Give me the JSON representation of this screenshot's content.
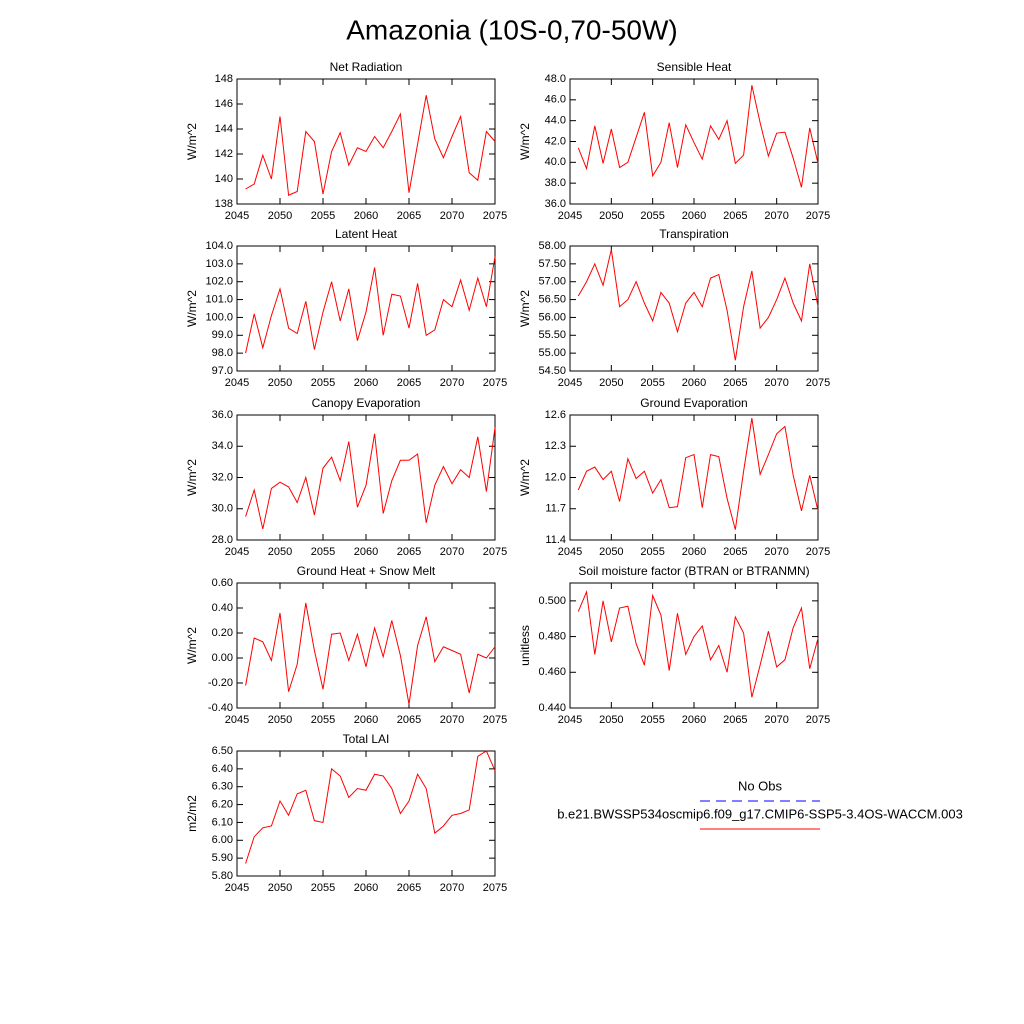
{
  "title": "Amazonia (10S-0,70-50W)",
  "legend": [
    {
      "label": "No Obs",
      "color": "#0000ff",
      "dash": true
    },
    {
      "label": "b.e21.BWSSP534oscmip6.f09_g17.CMIP6-SSP5-3.4OS-WACCM.003",
      "color": "#ff0000",
      "dash": false
    }
  ],
  "chart_data": [
    {
      "type": "line",
      "title": "Net Radiation",
      "ylabel": "W/m^2",
      "color": "#ff0000",
      "x": [
        2046,
        2047,
        2048,
        2049,
        2050,
        2051,
        2052,
        2053,
        2054,
        2055,
        2056,
        2057,
        2058,
        2059,
        2060,
        2061,
        2062,
        2063,
        2064,
        2065,
        2066,
        2067,
        2068,
        2069,
        2070,
        2071,
        2072,
        2073,
        2074,
        2075
      ],
      "values": [
        139.2,
        139.6,
        141.9,
        140.0,
        145.0,
        138.7,
        139.0,
        143.8,
        143.0,
        138.8,
        142.2,
        143.7,
        141.1,
        142.5,
        142.2,
        143.4,
        142.5,
        143.8,
        145.2,
        138.9,
        142.8,
        146.7,
        143.2,
        141.7,
        143.4,
        145.0,
        140.5,
        139.9,
        143.8,
        143.0
      ],
      "xlim": [
        2045,
        2075
      ],
      "xticks": [
        2045,
        2050,
        2055,
        2060,
        2065,
        2070,
        2075
      ],
      "ylim": [
        138,
        148
      ],
      "yticks": [
        138,
        140,
        142,
        144,
        146,
        148
      ]
    },
    {
      "type": "line",
      "title": "Sensible Heat",
      "ylabel": "W/m^2",
      "color": "#ff0000",
      "x": [
        2046,
        2047,
        2048,
        2049,
        2050,
        2051,
        2052,
        2053,
        2054,
        2055,
        2056,
        2057,
        2058,
        2059,
        2060,
        2061,
        2062,
        2063,
        2064,
        2065,
        2066,
        2067,
        2068,
        2069,
        2070,
        2071,
        2072,
        2073,
        2074,
        2075
      ],
      "values": [
        41.4,
        39.4,
        43.5,
        39.9,
        43.2,
        39.5,
        40.0,
        42.4,
        44.8,
        38.7,
        40.0,
        43.8,
        39.5,
        43.6,
        41.9,
        40.3,
        43.5,
        42.2,
        44.0,
        39.9,
        40.7,
        47.4,
        43.8,
        40.6,
        42.8,
        42.9,
        40.4,
        37.6,
        43.3,
        39.9
      ],
      "xlim": [
        2045,
        2075
      ],
      "xticks": [
        2045,
        2050,
        2055,
        2060,
        2065,
        2070,
        2075
      ],
      "ylim": [
        36,
        48
      ],
      "yticks": [
        {
          "value": 36,
          "label": "36.0"
        },
        {
          "value": 38,
          "label": "38.0"
        },
        {
          "value": 40,
          "label": "40.0"
        },
        {
          "value": 42,
          "label": "42.0"
        },
        {
          "value": 44,
          "label": "44.0"
        },
        {
          "value": 46,
          "label": "46.0"
        },
        {
          "value": 48,
          "label": "48.0"
        }
      ]
    },
    {
      "type": "line",
      "title": "Latent Heat",
      "ylabel": "W/m^2",
      "color": "#ff0000",
      "x": [
        2046,
        2047,
        2048,
        2049,
        2050,
        2051,
        2052,
        2053,
        2054,
        2055,
        2056,
        2057,
        2058,
        2059,
        2060,
        2061,
        2062,
        2063,
        2064,
        2065,
        2066,
        2067,
        2068,
        2069,
        2070,
        2071,
        2072,
        2073,
        2074,
        2075
      ],
      "values": [
        98.0,
        100.2,
        98.3,
        100.1,
        101.6,
        99.4,
        99.1,
        100.9,
        98.2,
        100.3,
        102.0,
        99.8,
        101.6,
        98.7,
        100.3,
        102.8,
        99.0,
        101.3,
        101.2,
        99.4,
        101.9,
        99.0,
        99.3,
        101.0,
        100.6,
        102.1,
        100.4,
        102.2,
        100.6,
        103.4
      ],
      "xlim": [
        2045,
        2075
      ],
      "xticks": [
        2045,
        2050,
        2055,
        2060,
        2065,
        2070,
        2075
      ],
      "ylim": [
        97,
        104
      ],
      "yticks": [
        {
          "value": 97,
          "label": "97.0"
        },
        {
          "value": 98,
          "label": "98.0"
        },
        {
          "value": 99,
          "label": "99.0"
        },
        {
          "value": 100,
          "label": "100.0"
        },
        {
          "value": 101,
          "label": "101.0"
        },
        {
          "value": 102,
          "label": "102.0"
        },
        {
          "value": 103,
          "label": "103.0"
        },
        {
          "value": 104,
          "label": "104.0"
        }
      ]
    },
    {
      "type": "line",
      "title": "Transpiration",
      "ylabel": "W/m^2",
      "color": "#ff0000",
      "x": [
        2046,
        2047,
        2048,
        2049,
        2050,
        2051,
        2052,
        2053,
        2054,
        2055,
        2056,
        2057,
        2058,
        2059,
        2060,
        2061,
        2062,
        2063,
        2064,
        2065,
        2066,
        2067,
        2068,
        2069,
        2070,
        2071,
        2072,
        2073,
        2074,
        2075
      ],
      "values": [
        56.6,
        57.0,
        57.5,
        56.9,
        57.9,
        56.3,
        56.5,
        57.0,
        56.4,
        55.9,
        56.7,
        56.4,
        55.6,
        56.4,
        56.7,
        56.3,
        57.1,
        57.2,
        56.2,
        54.8,
        56.3,
        57.3,
        55.7,
        56.0,
        56.5,
        57.1,
        56.4,
        55.9,
        57.5,
        56.3
      ],
      "xlim": [
        2045,
        2075
      ],
      "xticks": [
        2045,
        2050,
        2055,
        2060,
        2065,
        2070,
        2075
      ],
      "ylim": [
        54.5,
        58
      ],
      "yticks": [
        {
          "value": 54.5,
          "label": "54.50"
        },
        {
          "value": 55,
          "label": "55.00"
        },
        {
          "value": 55.5,
          "label": "55.50"
        },
        {
          "value": 56,
          "label": "56.00"
        },
        {
          "value": 56.5,
          "label": "56.50"
        },
        {
          "value": 57,
          "label": "57.00"
        },
        {
          "value": 57.5,
          "label": "57.50"
        },
        {
          "value": 58,
          "label": "58.00"
        }
      ]
    },
    {
      "type": "line",
      "title": "Canopy Evaporation",
      "ylabel": "W/m^2",
      "color": "#ff0000",
      "x": [
        2046,
        2047,
        2048,
        2049,
        2050,
        2051,
        2052,
        2053,
        2054,
        2055,
        2056,
        2057,
        2058,
        2059,
        2060,
        2061,
        2062,
        2063,
        2064,
        2065,
        2066,
        2067,
        2068,
        2069,
        2070,
        2071,
        2072,
        2073,
        2074,
        2075
      ],
      "values": [
        29.5,
        31.2,
        28.7,
        31.3,
        31.7,
        31.4,
        30.4,
        32.0,
        29.6,
        32.6,
        33.3,
        31.8,
        34.3,
        30.1,
        31.5,
        34.8,
        29.7,
        31.8,
        33.1,
        33.1,
        33.5,
        29.1,
        31.5,
        32.7,
        31.6,
        32.5,
        32.0,
        34.6,
        31.1,
        35.2
      ],
      "xlim": [
        2045,
        2075
      ],
      "xticks": [
        2045,
        2050,
        2055,
        2060,
        2065,
        2070,
        2075
      ],
      "ylim": [
        28,
        36
      ],
      "yticks": [
        {
          "value": 28,
          "label": "28.0"
        },
        {
          "value": 30,
          "label": "30.0"
        },
        {
          "value": 32,
          "label": "32.0"
        },
        {
          "value": 34,
          "label": "34.0"
        },
        {
          "value": 36,
          "label": "36.0"
        }
      ]
    },
    {
      "type": "line",
      "title": "Ground Evaporation",
      "ylabel": "W/m^2",
      "color": "#ff0000",
      "x": [
        2046,
        2047,
        2048,
        2049,
        2050,
        2051,
        2052,
        2053,
        2054,
        2055,
        2056,
        2057,
        2058,
        2059,
        2060,
        2061,
        2062,
        2063,
        2064,
        2065,
        2066,
        2067,
        2068,
        2069,
        2070,
        2071,
        2072,
        2073,
        2074,
        2075
      ],
      "values": [
        11.88,
        12.06,
        12.1,
        11.98,
        12.06,
        11.77,
        12.18,
        11.99,
        12.06,
        11.85,
        11.98,
        11.71,
        11.72,
        12.19,
        12.22,
        11.71,
        12.22,
        12.2,
        11.8,
        11.5,
        12.06,
        12.57,
        12.03,
        12.22,
        12.42,
        12.49,
        12.02,
        11.68,
        12.02,
        11.68
      ],
      "xlim": [
        2045,
        2075
      ],
      "xticks": [
        2045,
        2050,
        2055,
        2060,
        2065,
        2070,
        2075
      ],
      "ylim": [
        11.4,
        12.6
      ],
      "yticks": [
        11.4,
        11.7,
        {
          "value": 12,
          "label": "12.0"
        },
        12.3,
        12.6
      ]
    },
    {
      "type": "line",
      "title": "Ground Heat + Snow Melt",
      "ylabel": "W/m^2",
      "color": "#ff0000",
      "x": [
        2046,
        2047,
        2048,
        2049,
        2050,
        2051,
        2052,
        2053,
        2054,
        2055,
        2056,
        2057,
        2058,
        2059,
        2060,
        2061,
        2062,
        2063,
        2064,
        2065,
        2066,
        2067,
        2068,
        2069,
        2070,
        2071,
        2072,
        2073,
        2074,
        2075
      ],
      "values": [
        -0.22,
        0.16,
        0.13,
        -0.02,
        0.36,
        -0.27,
        -0.05,
        0.44,
        0.06,
        -0.25,
        0.19,
        0.2,
        -0.02,
        0.19,
        -0.07,
        0.24,
        0.01,
        0.3,
        0.02,
        -0.37,
        0.1,
        0.33,
        -0.03,
        0.09,
        0.06,
        0.03,
        -0.28,
        0.03,
        0.0,
        0.09
      ],
      "xlim": [
        2045,
        2075
      ],
      "xticks": [
        2045,
        2050,
        2055,
        2060,
        2065,
        2070,
        2075
      ],
      "ylim": [
        -0.4,
        0.6
      ],
      "yticks": [
        {
          "value": -0.4,
          "label": "-0.40"
        },
        {
          "value": -0.2,
          "label": "-0.20"
        },
        {
          "value": 0,
          "label": "0.00"
        },
        {
          "value": 0.2,
          "label": "0.20"
        },
        {
          "value": 0.4,
          "label": "0.40"
        },
        {
          "value": 0.6,
          "label": "0.60"
        }
      ]
    },
    {
      "type": "line",
      "title": "Soil moisture factor (BTRAN or BTRANMN)",
      "ylabel": "unitless",
      "color": "#ff0000",
      "x": [
        2046,
        2047,
        2048,
        2049,
        2050,
        2051,
        2052,
        2053,
        2054,
        2055,
        2056,
        2057,
        2058,
        2059,
        2060,
        2061,
        2062,
        2063,
        2064,
        2065,
        2066,
        2067,
        2068,
        2069,
        2070,
        2071,
        2072,
        2073,
        2074,
        2075
      ],
      "values": [
        0.494,
        0.505,
        0.47,
        0.5,
        0.477,
        0.496,
        0.497,
        0.476,
        0.464,
        0.503,
        0.492,
        0.461,
        0.493,
        0.47,
        0.48,
        0.486,
        0.467,
        0.475,
        0.46,
        0.491,
        0.482,
        0.446,
        0.464,
        0.483,
        0.463,
        0.467,
        0.485,
        0.496,
        0.462,
        0.479
      ],
      "xlim": [
        2045,
        2075
      ],
      "xticks": [
        2045,
        2050,
        2055,
        2060,
        2065,
        2070,
        2075
      ],
      "ylim": [
        0.44,
        0.51
      ],
      "yticks": [
        {
          "value": 0.44,
          "label": "0.440"
        },
        {
          "value": 0.46,
          "label": "0.460"
        },
        {
          "value": 0.48,
          "label": "0.480"
        },
        {
          "value": 0.5,
          "label": "0.500"
        }
      ]
    },
    {
      "type": "line",
      "title": "Total LAI",
      "ylabel": "m2/m2",
      "color": "#ff0000",
      "x": [
        2046,
        2047,
        2048,
        2049,
        2050,
        2051,
        2052,
        2053,
        2054,
        2055,
        2056,
        2057,
        2058,
        2059,
        2060,
        2061,
        2062,
        2063,
        2064,
        2065,
        2066,
        2067,
        2068,
        2069,
        2070,
        2071,
        2072,
        2073,
        2074,
        2075
      ],
      "values": [
        5.87,
        6.02,
        6.07,
        6.08,
        6.22,
        6.14,
        6.26,
        6.28,
        6.11,
        6.1,
        6.4,
        6.36,
        6.24,
        6.29,
        6.28,
        6.37,
        6.36,
        6.29,
        6.15,
        6.22,
        6.37,
        6.29,
        6.04,
        6.08,
        6.14,
        6.15,
        6.17,
        6.47,
        6.5,
        6.39
      ],
      "xlim": [
        2045,
        2075
      ],
      "xticks": [
        2045,
        2050,
        2055,
        2060,
        2065,
        2070,
        2075
      ],
      "ylim": [
        5.8,
        6.5
      ],
      "yticks": [
        {
          "value": 5.8,
          "label": "5.80"
        },
        {
          "value": 5.9,
          "label": "5.90"
        },
        {
          "value": 6,
          "label": "6.00"
        },
        {
          "value": 6.1,
          "label": "6.10"
        },
        {
          "value": 6.2,
          "label": "6.20"
        },
        {
          "value": 6.3,
          "label": "6.30"
        },
        {
          "value": 6.4,
          "label": "6.40"
        },
        {
          "value": 6.5,
          "label": "6.50"
        }
      ]
    }
  ]
}
